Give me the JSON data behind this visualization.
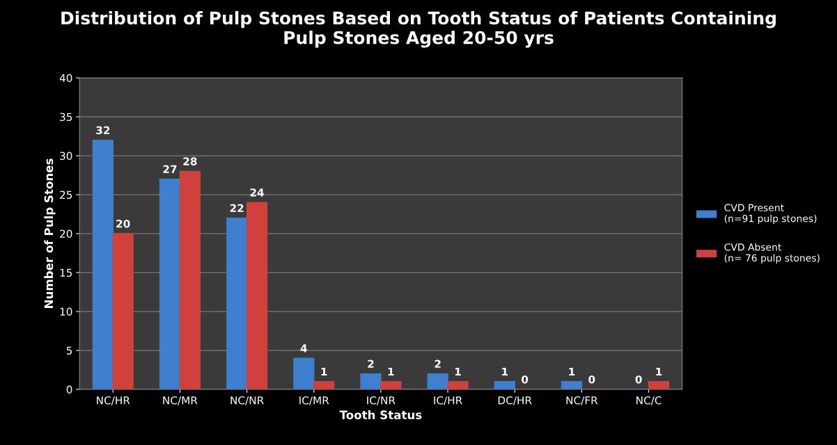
{
  "chart_data": {
    "type": "bar",
    "title": "Distribution of Pulp Stones Based on Tooth Status of Patients Containing\nPulp Stones Aged 20-50 yrs",
    "xlabel": "Tooth Status",
    "ylabel": "Number of Pulp Stones",
    "categories": [
      "NC/HR",
      "NC/MR",
      "NC/NR",
      "IC/MR",
      "IC/NR",
      "IC/HR",
      "DC/HR",
      "NC/FR",
      "NC/C"
    ],
    "series": [
      {
        "name": "CVD Present\n(n=91 pulp stones)",
        "color": "#3f7fd0",
        "values": [
          32,
          27,
          22,
          4,
          2,
          2,
          1,
          1,
          0
        ]
      },
      {
        "name": "CVD Absent\n(n= 76 pulp stones)",
        "color": "#d0413e",
        "values": [
          20,
          28,
          24,
          1,
          1,
          1,
          0,
          0,
          1
        ]
      }
    ],
    "ylim": [
      0,
      40
    ],
    "yticks": [
      0,
      5,
      10,
      15,
      20,
      25,
      30,
      35,
      40
    ],
    "grid": "y",
    "legend": "right",
    "data_labels": true
  }
}
